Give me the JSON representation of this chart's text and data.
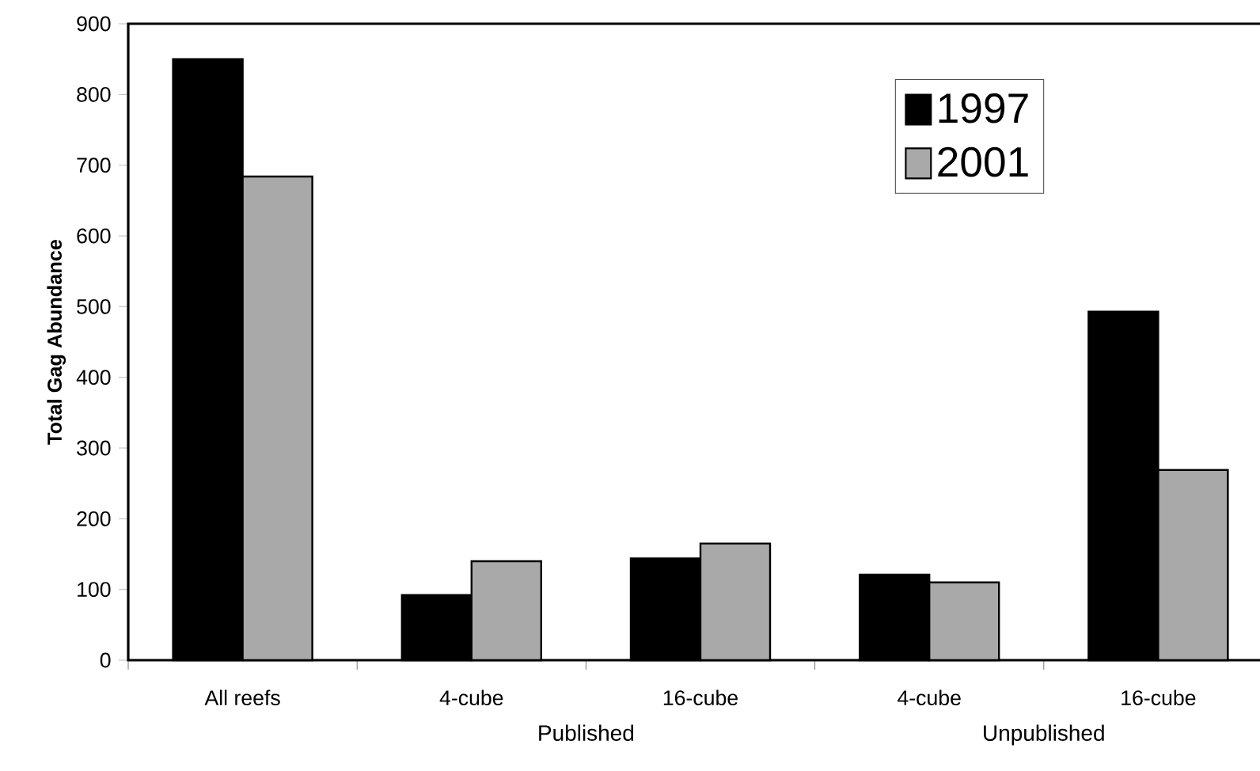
{
  "chart_data": {
    "type": "bar",
    "ylabel": "Total Gag Abundance",
    "categories": [
      "All reefs",
      "4-cube",
      "16-cube",
      "4-cube",
      "16-cube"
    ],
    "series": [
      {
        "name": "1997",
        "color": "#000000",
        "values": [
          850,
          92,
          144,
          121,
          493
        ]
      },
      {
        "name": "2001",
        "color": "#a9a9a9",
        "values": [
          684,
          140,
          165,
          110,
          269
        ]
      }
    ],
    "ylim": [
      0,
      900
    ],
    "yticks": [
      0,
      100,
      200,
      300,
      400,
      500,
      600,
      700,
      800,
      900
    ],
    "legend": "top right",
    "grid": false,
    "annotations": [
      "Published",
      "Unpublished"
    ]
  }
}
